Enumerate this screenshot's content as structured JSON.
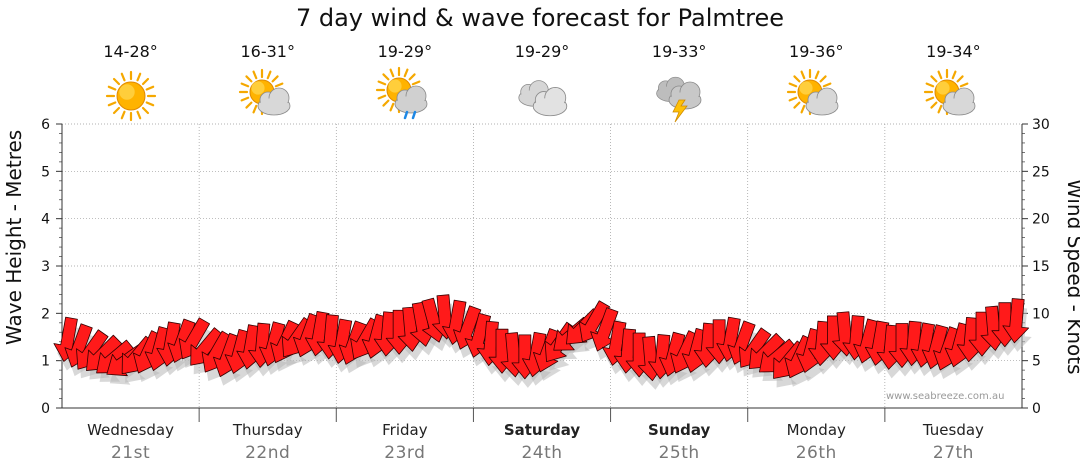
{
  "title": "7 day wind & wave forecast for Palmtree",
  "watermark": "www.seabreeze.com.au",
  "days": [
    {
      "name": "Wednesday",
      "date": "21st",
      "temp": "14-28°",
      "icon": "sun-icon",
      "bold": false
    },
    {
      "name": "Thursday",
      "date": "22nd",
      "temp": "16-31°",
      "icon": "sun-cloud-icon",
      "bold": false
    },
    {
      "name": "Friday",
      "date": "23rd",
      "temp": "19-29°",
      "icon": "sun-cloud-rain-icon",
      "bold": false
    },
    {
      "name": "Saturday",
      "date": "24th",
      "temp": "19-29°",
      "icon": "cloud-icon",
      "bold": true
    },
    {
      "name": "Sunday",
      "date": "25th",
      "temp": "19-33°",
      "icon": "storm-cloud-icon",
      "bold": true
    },
    {
      "name": "Monday",
      "date": "26th",
      "temp": "19-36°",
      "icon": "sun-cloud-icon",
      "bold": false
    },
    {
      "name": "Tuesday",
      "date": "27th",
      "temp": "19-34°",
      "icon": "sun-cloud-icon",
      "bold": false
    }
  ],
  "colors": {
    "arrow_fill": "#ff1a1a",
    "arrow_stroke": "#330000",
    "shadow": "#b8b8b8",
    "grid": "#999999"
  },
  "chart_data": {
    "type": "line",
    "series_name": "Wind direction & speed",
    "ylabel_left": "Wave Height - Metres",
    "ylabel_right": "Wind Speed - Knots",
    "y_left_ticks": [
      "0",
      "1",
      "2",
      "3",
      "4",
      "5",
      "6"
    ],
    "y_right_ticks": [
      "0",
      "5",
      "10",
      "15",
      "20",
      "25",
      "30"
    ],
    "ylim_left": [
      0,
      6
    ],
    "ylim_right": [
      0,
      30
    ],
    "grid": true,
    "wind_knots": [
      7.2,
      6.5,
      6.0,
      5.6,
      5.2,
      4.9,
      5.4,
      5.8,
      6.2,
      6.7,
      7.0,
      7.2,
      6.3,
      5.8,
      5.5,
      5.9,
      6.4,
      6.6,
      6.7,
      6.9,
      7.3,
      7.6,
      7.8,
      7.5,
      7.0,
      6.8,
      7.2,
      7.5,
      7.8,
      8.0,
      8.3,
      8.8,
      9.2,
      9.6,
      9.0,
      8.4,
      7.6,
      6.8,
      6.0,
      5.6,
      5.4,
      5.6,
      6.0,
      6.8,
      7.6,
      8.4,
      9.0,
      8.2,
      6.8,
      6.0,
      5.6,
      5.2,
      5.4,
      5.6,
      5.8,
      6.0,
      6.6,
      7.0,
      7.2,
      6.8,
      6.2,
      5.8,
      5.3,
      4.9,
      5.3,
      6.0,
      6.8,
      7.4,
      7.8,
      7.4,
      7.0,
      6.8,
      6.4,
      6.6,
      6.8,
      6.6,
      6.4,
      6.2,
      6.6,
      7.2,
      7.8,
      8.4,
      8.8,
      9.2
    ],
    "wind_dir_deg": [
      190,
      200,
      215,
      225,
      230,
      235,
      220,
      205,
      195,
      190,
      200,
      210,
      220,
      210,
      200,
      195,
      190,
      185,
      195,
      205,
      215,
      200,
      190,
      185,
      190,
      200,
      210,
      195,
      185,
      180,
      175,
      170,
      165,
      175,
      190,
      200,
      195,
      185,
      180,
      175,
      180,
      190,
      200,
      215,
      230,
      225,
      210,
      200,
      190,
      185,
      180,
      175,
      185,
      195,
      205,
      195,
      185,
      180,
      190,
      200,
      215,
      225,
      230,
      220,
      205,
      195,
      185,
      180,
      175,
      185,
      195,
      190,
      185,
      180,
      185,
      190,
      195,
      200,
      195,
      185,
      180,
      175,
      180,
      185
    ]
  }
}
